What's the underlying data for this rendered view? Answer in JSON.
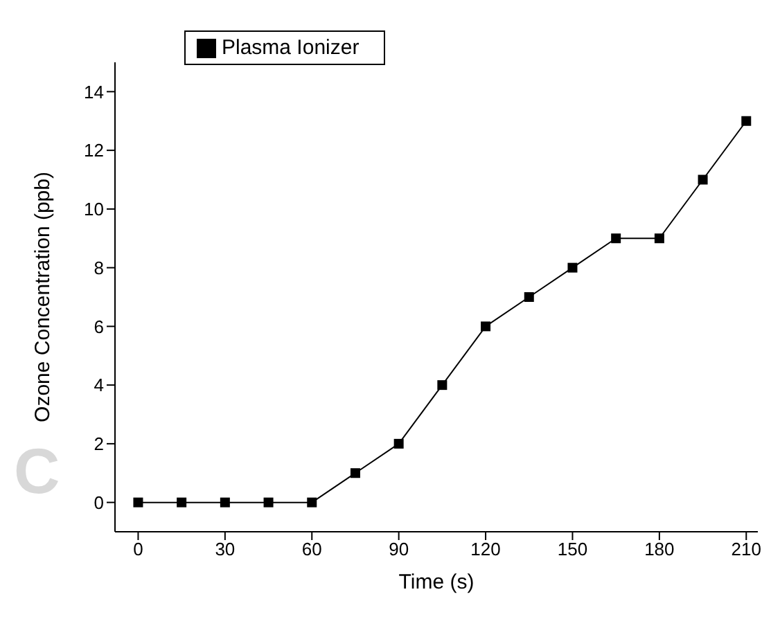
{
  "chart_data": {
    "type": "line",
    "xlabel": "Time (s)",
    "ylabel": "Ozone Concentration (ppb)",
    "x": [
      0,
      15,
      30,
      45,
      60,
      75,
      90,
      105,
      120,
      135,
      150,
      165,
      180,
      195,
      210
    ],
    "series": [
      {
        "name": "Plasma Ionizer",
        "color": "#000000",
        "values": [
          0,
          0,
          0,
          0,
          0,
          1,
          2,
          4,
          6,
          7,
          8,
          9,
          9,
          11,
          13
        ]
      }
    ],
    "xlim": [
      -8,
      214
    ],
    "xticks": [
      0,
      30,
      60,
      90,
      120,
      150,
      180,
      210
    ],
    "ylim": [
      -1,
      15
    ],
    "yticks": [
      0,
      2,
      4,
      6,
      8,
      10,
      12,
      14
    ],
    "marker": "square",
    "line_style": "solid",
    "legend": "top left",
    "grid": false,
    "annotations": [
      "C"
    ]
  }
}
